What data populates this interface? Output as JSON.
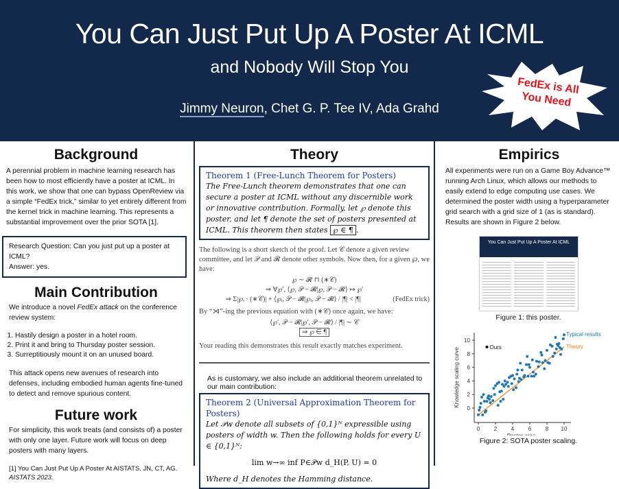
{
  "header": {
    "title": "You Can Just Put Up A Poster At ICML",
    "subtitle": "and Nobody Will Stop You",
    "authors": [
      "Jimmy Neuron",
      ", Chet G. P. Tee IV, Ada Grahd"
    ],
    "badge": "FedEx is All You Need"
  },
  "colors": {
    "header_bg": "#13294b",
    "badge_text": "#e0161b",
    "theorem_title": "#1d3a9e",
    "points": "#1f77b4",
    "theory": "#ff7f0e"
  },
  "background": {
    "heading": "Background",
    "text": "A perennial problem in machine learning research has been how to most efficiently have a poster at ICML. In this work, we show that one can bypass OpenReview via a simple “FedEx trick,” similar to yet entirely different from the kernel trick in machine learning. This represents a substantial  improvement over the prior SOTA [1].",
    "rq": "Research Question: Can you just put up a poster at ICML?",
    "answer": "Answer: yes."
  },
  "contribution": {
    "heading": "Main Contribution",
    "intro_a": "We introduce a novel ",
    "intro_em": "FedEx attack",
    "intro_b": " on the conference review system:",
    "steps": [
      "Hastily design a poster in a hotel room.",
      "Print it and bring to Thursday poster session.",
      "Surreptitiously mount it on an unused board."
    ],
    "outro": "This attack opens new avenues of research into defenses, including embodied human agents fine-tuned to detect and remove spurious content."
  },
  "future": {
    "heading": "Future work",
    "text": "For simplicity, this work treats (and consists of) a poster with only one layer. Future work will focus on deep posters with many layers.",
    "ref": "[1] You Can Just Put Up A Poster At AISTATS. JN, CT, AG.",
    "ref_venue": "AISTATS 2023."
  },
  "theory": {
    "heading": "Theory",
    "thm1_title": "Theorem 1 (Free-Lunch Theorem for Posters)",
    "thm1_text": "The Free-Lunch theorem demonstrates that one can secure a poster at ICML without any discernible work or innovative contribution. Formally, let ℘ denote this poster, and let ¶ denote the set of posters presented at ICML. This theorem then states",
    "thm1_box": "℘ ∈ ¶",
    "proof_intro": "The following is a short sketch of the proof. Let 𝒞 denote a given review committee, and let 𝒫 and 𝓡 denote other symbols. Now then, for a given ℘, we have:",
    "eqs": [
      "℘ ∼ 𝓡 ⊓ (∗𝒞)",
      "⇒ ∀℘′, ⟨℘, 𝒫 − 𝓡|℘, 𝒫 − 𝓡⟩ ↦ ℘′",
      "⇒ Σ|℘ᵢ · (∗𝒞)| + ⟨℘ᵢ, 𝒫 − 𝓡|℘ᵢ, 𝒫 − 𝓡⟩ / |¶| < |¶|"
    ],
    "eq_tag": "(FedEx trick)",
    "proof_mid": "By “⋊”-ing the previous equation with (∗𝒞) once again, we have:",
    "eqs2": [
      "⟨℘′, 𝒫 − 𝓡|℘′, 𝒫 − 𝓡⟩ / |¶| ∼ 𝒞",
      "⇒ ℘ ∈ ¶"
    ],
    "proof_end": "Your reading this demonstrates this result exactly matches experiment.",
    "customary": "As is customary, we also include an additional theorem unrelated to our main contribution:",
    "thm2_title": "Theorem 2 (Universal Approximation Theorem for Posters)",
    "thm2_text": "Let 𝒫w denote all subsets of {0,1}ᴺ expressible using posters of width w. Then the following holds for every U ∈ {0,1}ᴺ:",
    "thm2_eq": "lim w→∞  inf P∈𝒫w  d_H(P, U) = 0",
    "thm2_end": "Where d_H denotes the Hamming distance."
  },
  "empirics": {
    "heading": "Empirics",
    "text": "All experiments were run on a Game Boy Advance™ running Arch Linux, which allows our methods to easily extend to edge computing use cases. We determined the poster width using a hyperparameter grid search with a grid size of 1 (as is standard). Results are shown in Figure 2 below.",
    "fig1_caption": "Figure 1: this poster.",
    "fig2_caption": "Figure 2: SOTA poster scaling."
  },
  "chart_data": {
    "type": "scatter",
    "xlabel": "Poster area",
    "ylabel": "Knowledge scaling curve",
    "xlim": [
      0,
      10.5
    ],
    "ylim": [
      -1.5,
      11
    ],
    "xticks": [
      0,
      2,
      4,
      6,
      8,
      10
    ],
    "yticks": [
      0,
      2,
      4,
      6,
      8,
      10
    ],
    "series": [
      {
        "name": "Typical results",
        "points": [
          [
            0,
            -1
          ],
          [
            0.1,
            -0.3
          ],
          [
            0.2,
            0.1
          ],
          [
            0.3,
            0.7
          ],
          [
            0.4,
            1.6
          ],
          [
            0.5,
            -1
          ],
          [
            0.6,
            2
          ],
          [
            0.7,
            1
          ],
          [
            0.8,
            -0.6
          ],
          [
            0.9,
            -0.4
          ],
          [
            1,
            1
          ],
          [
            1.1,
            1.5
          ],
          [
            1.2,
            1.8
          ],
          [
            1.3,
            1.3
          ],
          [
            1.4,
            0.8
          ],
          [
            1.5,
            1.7
          ],
          [
            1.7,
            1.1
          ],
          [
            1.8,
            2.9
          ],
          [
            1.9,
            2
          ],
          [
            2,
            3.3
          ],
          [
            2.2,
            3.6
          ],
          [
            2.3,
            0.4
          ],
          [
            2.4,
            3.8
          ],
          [
            2.5,
            2.4
          ],
          [
            2.6,
            1
          ],
          [
            2.7,
            2.5
          ],
          [
            2.8,
            3.5
          ],
          [
            2.9,
            1.3
          ],
          [
            3,
            3.2
          ],
          [
            3.1,
            4
          ],
          [
            3.2,
            3.5
          ],
          [
            3.4,
            3.8
          ],
          [
            3.5,
            3.2
          ],
          [
            3.6,
            4.5
          ],
          [
            3.8,
            4.7
          ],
          [
            3.9,
            3.6
          ],
          [
            4,
            4.8
          ],
          [
            4.1,
            2.7
          ],
          [
            4.2,
            4.3
          ],
          [
            4.4,
            3
          ],
          [
            4.5,
            5
          ],
          [
            4.6,
            5.6
          ],
          [
            4.7,
            3.9
          ],
          [
            4.8,
            4.4
          ],
          [
            4.9,
            6.6
          ],
          [
            5,
            4.2
          ],
          [
            5.1,
            5.6
          ],
          [
            5.3,
            4.6
          ],
          [
            5.4,
            4.8
          ],
          [
            5.6,
            6.4
          ],
          [
            5.7,
            7.6
          ],
          [
            5.8,
            4.7
          ],
          [
            5.9,
            6.4
          ],
          [
            6,
            6
          ],
          [
            6.2,
            4.7
          ],
          [
            6.3,
            7.1
          ],
          [
            6.4,
            5.3
          ],
          [
            6.5,
            4.7
          ],
          [
            6.7,
            5
          ],
          [
            6.8,
            6.9
          ],
          [
            7,
            6.1
          ],
          [
            7.1,
            6.8
          ],
          [
            7.3,
            8.2
          ],
          [
            7.4,
            7.8
          ],
          [
            7.5,
            6.7
          ],
          [
            7.7,
            5.8
          ],
          [
            7.8,
            7
          ],
          [
            8,
            8.5
          ],
          [
            8.1,
            6.7
          ],
          [
            8.3,
            6.6
          ],
          [
            8.4,
            9.3
          ],
          [
            8.6,
            9.1
          ],
          [
            8.7,
            7.6
          ],
          [
            8.9,
            8.1
          ],
          [
            9,
            10.4
          ],
          [
            9.1,
            8.7
          ],
          [
            9.2,
            9.4
          ],
          [
            9.3,
            9.2
          ],
          [
            9.4,
            9.5
          ],
          [
            9.5,
            8.9
          ],
          [
            9.6,
            7.9
          ],
          [
            9.7,
            8.7
          ],
          [
            9.9,
            10.2
          ],
          [
            10,
            10.8
          ]
        ]
      },
      {
        "name": "Theory",
        "line": [
          [
            0,
            -1
          ],
          [
            10,
            9
          ]
        ]
      },
      {
        "name": "Ours",
        "points": [
          [
            1,
            9
          ]
        ]
      }
    ]
  }
}
